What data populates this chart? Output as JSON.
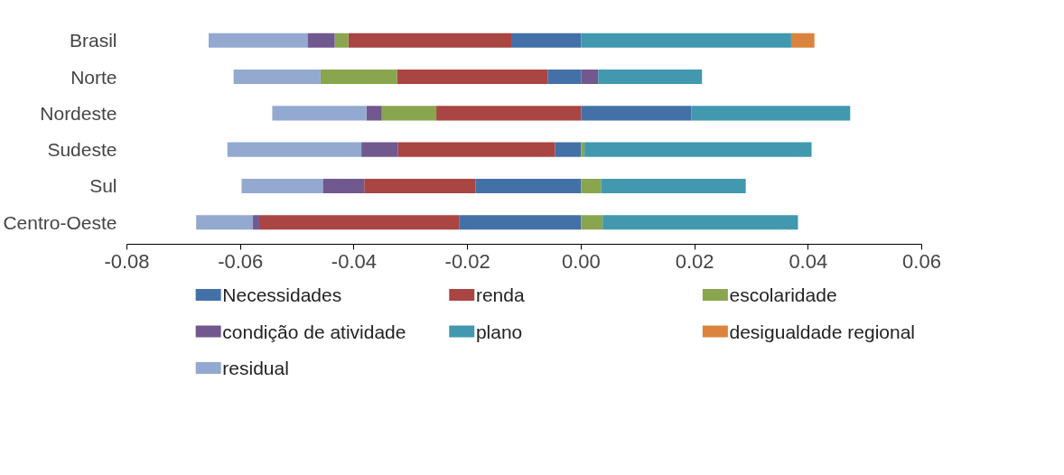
{
  "chart_data": {
    "type": "bar",
    "orientation": "horizontal",
    "stacked": true,
    "categories": [
      "Brasil",
      "Norte",
      "Nordeste",
      "Sudeste",
      "Sul",
      "Centro-Oeste"
    ],
    "series": [
      {
        "name": "Necessidades",
        "color": "#4470a8",
        "values": [
          -0.0123,
          -0.0059,
          0.0194,
          -0.0046,
          -0.0186,
          -0.0215
        ]
      },
      {
        "name": "renda",
        "color": "#a94543",
        "values": [
          -0.0287,
          -0.0265,
          -0.0255,
          -0.0277,
          -0.0196,
          -0.0352
        ]
      },
      {
        "name": "escolaridade",
        "color": "#89a54e",
        "values": [
          -0.0024,
          -0.0135,
          -0.0096,
          0.0006,
          0.0035,
          0.0038
        ]
      },
      {
        "name": "condição de atividade",
        "color": "#71588f",
        "values": [
          -0.0048,
          0.003,
          -0.0027,
          -0.0064,
          -0.0073,
          -0.0011
        ]
      },
      {
        "name": "plano",
        "color": "#4198af",
        "values": [
          0.037,
          0.0183,
          0.028,
          0.04,
          0.0255,
          0.0344
        ]
      },
      {
        "name": "desigualdade regional",
        "color": "#db843d",
        "values": [
          0.0041,
          0,
          0,
          0,
          0,
          0
        ]
      },
      {
        "name": "residual",
        "color": "#93a9cf",
        "values": [
          -0.0174,
          -0.0153,
          -0.0166,
          -0.0236,
          -0.0143,
          -0.01
        ]
      }
    ],
    "xlim": [
      -0.08,
      0.06
    ],
    "xticks": [
      {
        "value": -0.08,
        "label": "-0.08"
      },
      {
        "value": -0.06,
        "label": "-0.06"
      },
      {
        "value": -0.04,
        "label": "-0.04"
      },
      {
        "value": -0.02,
        "label": "-0.02"
      },
      {
        "value": 0,
        "label": "0.00"
      },
      {
        "value": 0.02,
        "label": "0.02"
      },
      {
        "value": 0.04,
        "label": "0.04"
      },
      {
        "value": 0.06,
        "label": "0.06"
      }
    ],
    "grid": false,
    "legend": "bottom"
  }
}
